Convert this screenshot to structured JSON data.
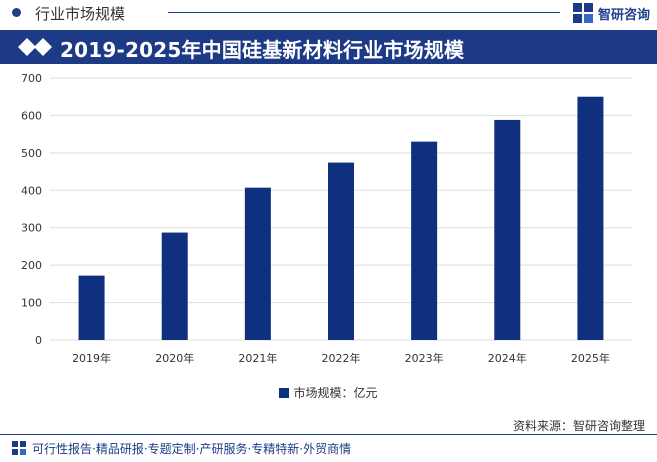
{
  "header": {
    "section_title": "行业市场规模",
    "brand": "智研咨询"
  },
  "banner": {
    "title": "2019-2025年中国硅基新材料行业市场规模"
  },
  "chart_data": {
    "type": "bar",
    "categories": [
      "2019年",
      "2020年",
      "2021年",
      "2022年",
      "2023年",
      "2024年",
      "2025年"
    ],
    "series": [
      {
        "name": "市场规模：亿元",
        "values": [
          172,
          287,
          407,
          474,
          530,
          588,
          650
        ],
        "color": "#0f2f7f"
      }
    ],
    "title": "2019-2025年中国硅基新材料行业市场规模",
    "xlabel": "",
    "ylabel": "",
    "ylim": [
      0,
      700
    ],
    "yticks": [
      0,
      100,
      200,
      300,
      400,
      500,
      600,
      700
    ],
    "grid": true,
    "legend": "bottom"
  },
  "legend": {
    "label": "市场规模：亿元"
  },
  "source": "资料来源：智研咨询整理",
  "footer": {
    "text": "可行性报告·精品研报·专题定制·产研服务·专精特新·外贸商情"
  },
  "colors": {
    "primary": "#1d3a86",
    "bar": "#0f2f7f",
    "grid": "#dddddd"
  }
}
